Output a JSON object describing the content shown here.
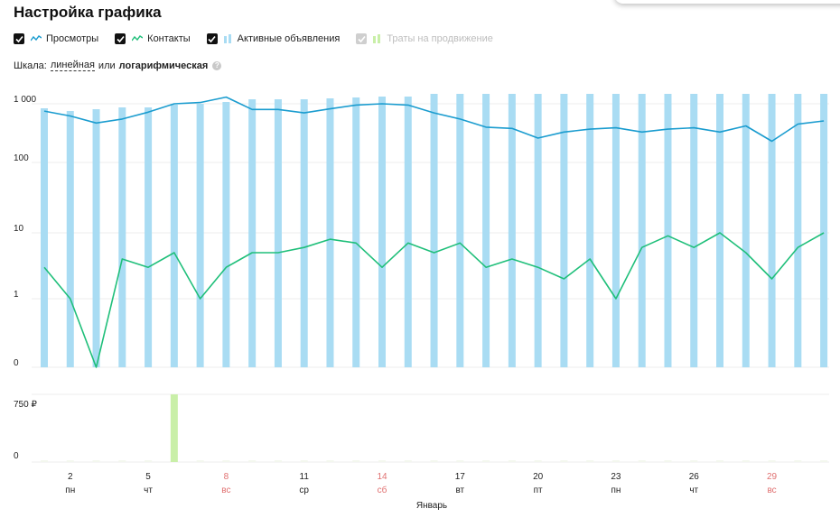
{
  "title": "Настройка графика",
  "legend": [
    {
      "label": "Просмотры",
      "checked": true,
      "color": "#1a9ccf",
      "icon": "line-icon"
    },
    {
      "label": "Контакты",
      "checked": true,
      "color": "#1fbf7a",
      "icon": "line-icon"
    },
    {
      "label": "Активные объявления",
      "checked": true,
      "color": "#a9dcf3",
      "icon": "bar-icon"
    },
    {
      "label": "Траты на продвижение",
      "checked": false,
      "color": "#c9efa8",
      "icon": "bar-icon"
    }
  ],
  "scale": {
    "prefix": "Шкала:",
    "linear": "линейная",
    "or": "или",
    "log": "логарифмическая",
    "help_icon": "question-icon"
  },
  "chart_data": [
    {
      "type": "line",
      "y_scale": "log",
      "y_ticks": [
        "1 000",
        "100",
        "10",
        "1",
        "0"
      ],
      "x": [
        1,
        2,
        3,
        4,
        5,
        6,
        7,
        8,
        9,
        10,
        11,
        12,
        13,
        14,
        15,
        16,
        17,
        18,
        19,
        20,
        21,
        22,
        23,
        24,
        25,
        26,
        27,
        28,
        29,
        30,
        31
      ],
      "series": [
        {
          "name": "Просмотры",
          "color": "#1a9ccf",
          "values": [
            750,
            620,
            470,
            550,
            720,
            1000,
            1050,
            1300,
            800,
            800,
            700,
            820,
            950,
            1000,
            950,
            700,
            550,
            400,
            380,
            260,
            330,
            370,
            390,
            330,
            370,
            390,
            330,
            420,
            230,
            450,
            510
          ]
        },
        {
          "name": "Контакты",
          "color": "#1fbf7a",
          "values": [
            3,
            1,
            0,
            4,
            3,
            5,
            1,
            3,
            5,
            5,
            6,
            8,
            7,
            3,
            7,
            5,
            7,
            3,
            4,
            3,
            2,
            4,
            1,
            6,
            9,
            6,
            10,
            5,
            2,
            6,
            10
          ]
        },
        {
          "name": "Активные объявления",
          "type": "bar",
          "color": "#a9dcf3",
          "values": [
            1000,
            1000,
            1000,
            1000,
            1000,
            1000,
            1000,
            1000,
            1000,
            1000,
            1000,
            1000,
            1000,
            1000,
            1000,
            1000,
            1000,
            1000,
            1000,
            1000,
            1000,
            1000,
            1000,
            1000,
            1000,
            1000,
            1000,
            1000,
            1000,
            1000,
            1000
          ]
        }
      ]
    },
    {
      "type": "bar",
      "y_ticks": [
        "750 ₽",
        "0"
      ],
      "x": [
        1,
        2,
        3,
        4,
        5,
        6,
        7,
        8,
        9,
        10,
        11,
        12,
        13,
        14,
        15,
        16,
        17,
        18,
        19,
        20,
        21,
        22,
        23,
        24,
        25,
        26,
        27,
        28,
        29,
        30,
        31
      ],
      "series": [
        {
          "name": "Траты на продвижение",
          "color": "#c9efa8",
          "values": [
            0,
            0,
            0,
            0,
            0,
            750,
            0,
            0,
            0,
            0,
            0,
            0,
            0,
            0,
            0,
            0,
            0,
            0,
            0,
            0,
            0,
            0,
            0,
            0,
            0,
            0,
            0,
            0,
            0,
            0,
            0
          ]
        }
      ]
    }
  ],
  "x_axis": {
    "ticks": [
      {
        "day": "2",
        "weekday": "пн",
        "weekend": false
      },
      {
        "day": "5",
        "weekday": "чт",
        "weekend": false
      },
      {
        "day": "8",
        "weekday": "вс",
        "weekend": true
      },
      {
        "day": "11",
        "weekday": "ср",
        "weekend": false
      },
      {
        "day": "14",
        "weekday": "сб",
        "weekend": true
      },
      {
        "day": "17",
        "weekday": "вт",
        "weekend": false
      },
      {
        "day": "20",
        "weekday": "пт",
        "weekend": false
      },
      {
        "day": "23",
        "weekday": "пн",
        "weekend": false
      },
      {
        "day": "26",
        "weekday": "чт",
        "weekend": false
      },
      {
        "day": "29",
        "weekday": "вс",
        "weekend": true
      }
    ],
    "month": "Январь",
    "weekend_color": "#e07070"
  }
}
